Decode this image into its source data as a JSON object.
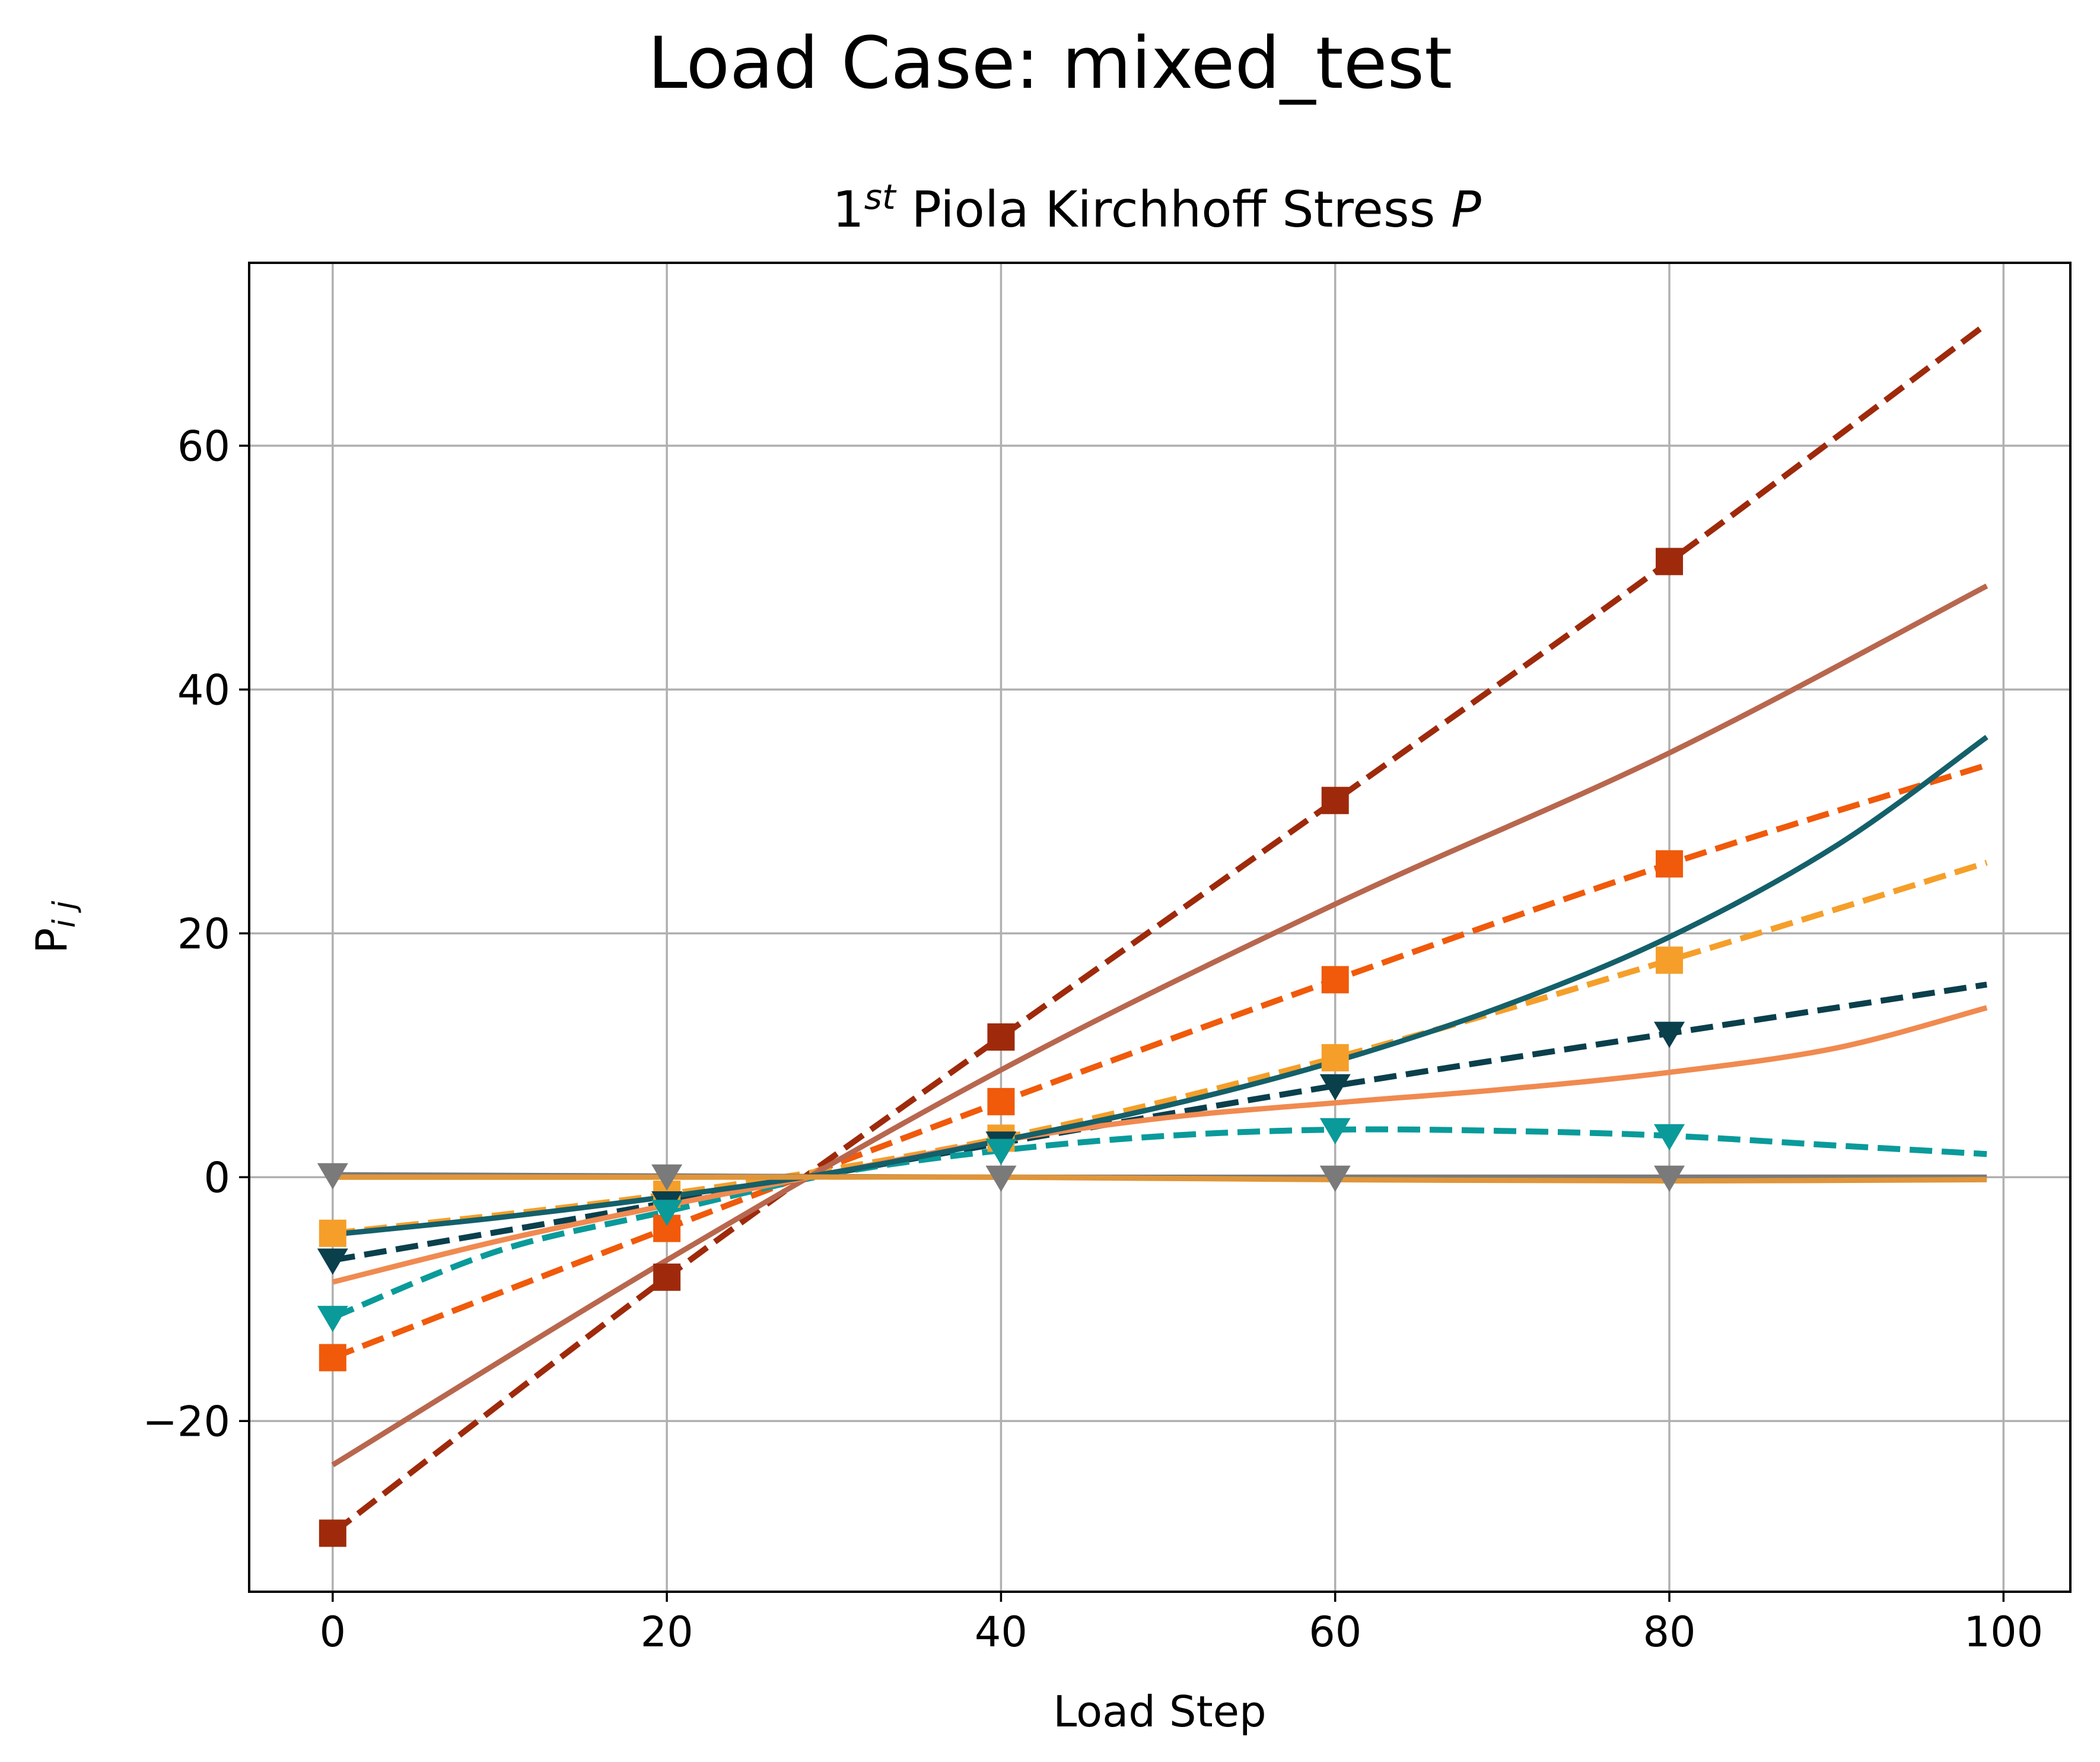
{
  "figure": {
    "suptitle": "Load Case: mixed_test"
  },
  "chart_data": {
    "type": "line",
    "title_base": "1",
    "title_sup": "st",
    "title_rest": " Piola Kirchhoff Stress ",
    "title_var": "P",
    "xlabel": "Load Step",
    "ylabel_main": "P",
    "ylabel_sub": "i j",
    "xlim": [
      -5,
      104
    ],
    "ylim": [
      -34,
      75
    ],
    "xticks": [
      0,
      20,
      40,
      60,
      80,
      100
    ],
    "yticks": [
      -20,
      0,
      20,
      40,
      60
    ],
    "ytick_labels": [
      "−20",
      "0",
      "20",
      "40",
      "60"
    ],
    "grid": true,
    "marker_x": [
      0,
      20,
      40,
      60,
      80
    ],
    "colors": {
      "dark_red": "#9e2a0b",
      "orange": "#f05a0a",
      "amber": "#f59f2a",
      "dark_teal": "#0a3f4c",
      "teal": "#0a9a9a",
      "gray": "#7a7a7a",
      "brown": "#b8674e",
      "salmon": "#f08a50",
      "teal_solid": "#14606a",
      "orange_flat": "#e0953a"
    },
    "series": [
      {
        "style": "dashed",
        "color": "dark_red",
        "marker": "square",
        "x": [
          0,
          20,
          40,
          60,
          80,
          99
        ],
        "y": [
          -29.2,
          -8.2,
          11.5,
          30.9,
          50.5,
          70.0
        ]
      },
      {
        "style": "dashed",
        "color": "orange",
        "marker": "square",
        "x": [
          0,
          20,
          40,
          60,
          80,
          99
        ],
        "y": [
          -14.8,
          -4.2,
          6.2,
          16.2,
          25.7,
          33.8
        ]
      },
      {
        "style": "dashed",
        "color": "amber",
        "marker": "square",
        "x": [
          0,
          20,
          40,
          60,
          80,
          99
        ],
        "y": [
          -4.6,
          -1.4,
          3.2,
          9.8,
          17.8,
          25.8
        ]
      },
      {
        "style": "dashed",
        "color": "dark_teal",
        "marker": "triangle_down",
        "x": [
          0,
          20,
          40,
          60,
          80,
          99
        ],
        "y": [
          -6.8,
          -2.1,
          2.8,
          7.5,
          11.8,
          15.8
        ]
      },
      {
        "style": "dashed",
        "color": "teal",
        "marker": "triangle_down",
        "x": [
          0,
          10,
          20,
          30,
          40,
          50,
          60,
          70,
          80,
          90,
          99
        ],
        "y": [
          -11.5,
          -6.0,
          -2.8,
          0.3,
          2.2,
          3.4,
          3.9,
          3.8,
          3.4,
          2.6,
          1.9
        ]
      },
      {
        "style": "solid",
        "color": "gray",
        "marker": "triangle_down",
        "x": [
          0,
          20,
          40,
          60,
          80,
          99
        ],
        "y": [
          0.2,
          0.1,
          0.0,
          0.0,
          0.0,
          0.0
        ]
      },
      {
        "style": "solid",
        "color": "brown",
        "marker": "none",
        "x": [
          0,
          20,
          40,
          60,
          80,
          99
        ],
        "y": [
          -23.6,
          -6.8,
          8.8,
          22.4,
          34.8,
          48.5
        ]
      },
      {
        "style": "solid",
        "color": "salmon",
        "marker": "none",
        "x": [
          0,
          10,
          20,
          30,
          40,
          50,
          60,
          70,
          80,
          90,
          99
        ],
        "y": [
          -8.6,
          -5.2,
          -2.3,
          0.4,
          3.0,
          4.9,
          6.1,
          7.2,
          8.6,
          10.6,
          13.9
        ]
      },
      {
        "style": "solid",
        "color": "teal_solid",
        "marker": "none",
        "x": [
          0,
          10,
          20,
          30,
          40,
          50,
          60,
          70,
          80,
          90,
          99
        ],
        "y": [
          -4.7,
          -3.3,
          -1.6,
          0.4,
          3.0,
          5.9,
          9.5,
          14.0,
          19.7,
          27.2,
          36.1
        ]
      },
      {
        "style": "solid",
        "color": "orange_flat",
        "marker": "none",
        "x": [
          0,
          20,
          40,
          60,
          80,
          99
        ],
        "y": [
          0.0,
          0.0,
          0.0,
          -0.2,
          -0.3,
          -0.2
        ]
      }
    ]
  }
}
